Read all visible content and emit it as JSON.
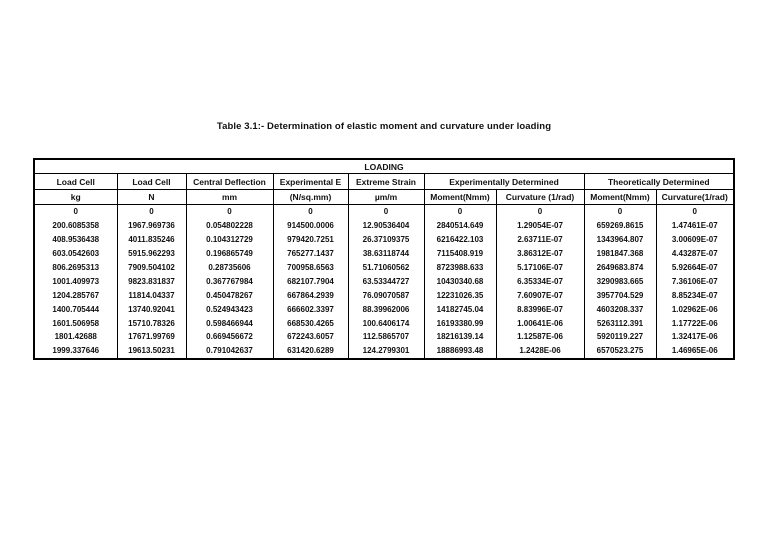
{
  "page": {
    "title": "Table 3.1:-  Determination of elastic moment and curvature under loading"
  },
  "table": {
    "loading_label": "LOADING",
    "head": [
      "Load Cell",
      "Load Cell",
      "Central Deflection",
      "Experimental E",
      "Extreme Strain",
      "Experimentally Determined",
      "Theoretically Determined"
    ],
    "units": [
      "kg",
      "N",
      "mm",
      "(N/sq.mm)",
      "µm/m",
      "Moment(Nmm)",
      "Curvature (1/rad)",
      "Moment(Nmm)",
      "Curvature(1/rad)"
    ],
    "rows": [
      [
        "0",
        "0",
        "0",
        "0",
        "0",
        "0",
        "0",
        "0",
        "0"
      ],
      [
        "200.6085358",
        "1967.969736",
        "0.054802228",
        "914500.0006",
        "12.90536404",
        "2840514.649",
        "1.29054E-07",
        "659269.8615",
        "1.47461E-07"
      ],
      [
        "408.9536438",
        "4011.835246",
        "0.104312729",
        "979420.7251",
        "26.37109375",
        "6216422.103",
        "2.63711E-07",
        "1343964.807",
        "3.00609E-07"
      ],
      [
        "603.0542603",
        "5915.962293",
        "0.196865749",
        "765277.1437",
        "38.63118744",
        "7115408.919",
        "3.86312E-07",
        "1981847.368",
        "4.43287E-07"
      ],
      [
        "806.2695313",
        "7909.504102",
        "0.28735606",
        "700958.6563",
        "51.71060562",
        "8723988.633",
        "5.17106E-07",
        "2649683.874",
        "5.92664E-07"
      ],
      [
        "1001.409973",
        "9823.831837",
        "0.367767984",
        "682107.7904",
        "63.53344727",
        "10430340.68",
        "6.35334E-07",
        "3290983.665",
        "7.36106E-07"
      ],
      [
        "1204.285767",
        "11814.04337",
        "0.450478267",
        "667864.2939",
        "76.09070587",
        "12231026.35",
        "7.60907E-07",
        "3957704.529",
        "8.85234E-07"
      ],
      [
        "1400.705444",
        "13740.92041",
        "0.524943423",
        "666602.3397",
        "88.39962006",
        "14182745.04",
        "8.83996E-07",
        "4603208.337",
        "1.02962E-06"
      ],
      [
        "1601.506958",
        "15710.78326",
        "0.598466944",
        "668530.4265",
        "100.6406174",
        "16193380.99",
        "1.00641E-06",
        "5263112.391",
        "1.17722E-06"
      ],
      [
        "1801.42688",
        "17671.99769",
        "0.669456672",
        "672243.6057",
        "112.5865707",
        "18216139.14",
        "1.12587E-06",
        "5920119.227",
        "1.32417E-06"
      ],
      [
        "1999.337646",
        "19613.50231",
        "0.791042637",
        "631420.6289",
        "124.2799301",
        "18886993.48",
        "1.2428E-06",
        "6570523.275",
        "1.46965E-06"
      ]
    ],
    "colors": {
      "border": "#000000",
      "text": "#111111",
      "background": "#ffffff"
    }
  }
}
